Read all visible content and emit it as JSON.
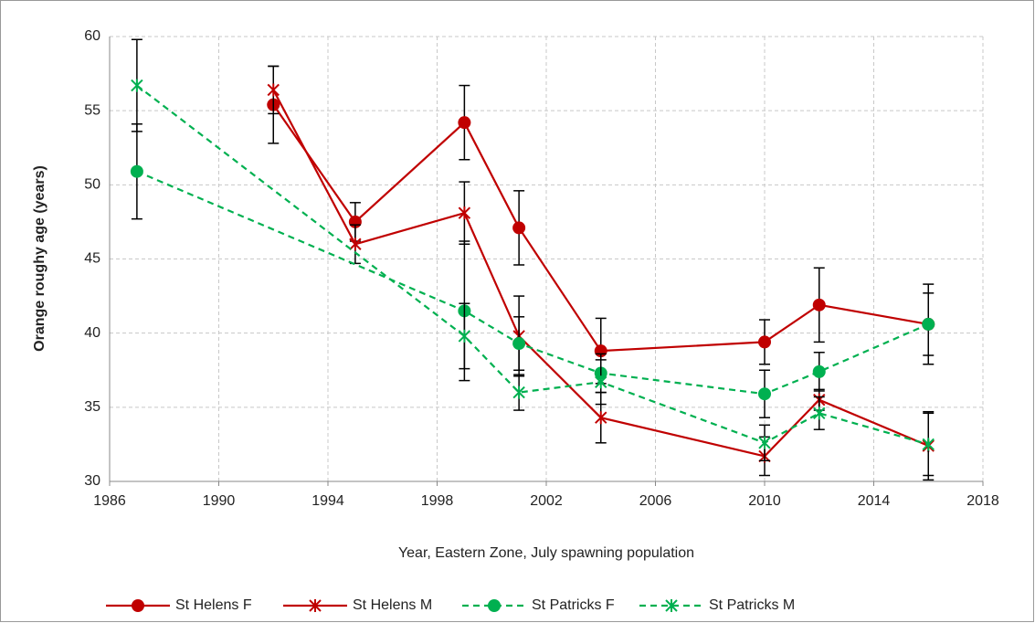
{
  "chart_data": {
    "type": "line",
    "xlabel": "Year, Eastern Zone, July spawning population",
    "ylabel": "Orange roughy age (years)",
    "xlim": [
      1986,
      2018
    ],
    "xticks": [
      1986,
      1990,
      1994,
      1998,
      2002,
      2006,
      2010,
      2014,
      2018
    ],
    "ylim": [
      30,
      60
    ],
    "yticks": [
      30,
      35,
      40,
      45,
      50,
      55,
      60
    ],
    "grid": true,
    "legend": "bottom",
    "series": [
      {
        "name": "St Helens F",
        "color": "#c00000",
        "marker": "circle",
        "dash": false,
        "x": [
          1992,
          1995,
          1999,
          2001,
          2004,
          2010,
          2012,
          2016
        ],
        "values": [
          55.4,
          47.5,
          54.2,
          47.1,
          38.8,
          39.4,
          41.9,
          40.6
        ],
        "errors": [
          2.6,
          1.3,
          2.5,
          2.5,
          2.2,
          1.5,
          2.5,
          2.7
        ]
      },
      {
        "name": "St Helens M",
        "color": "#c00000",
        "marker": "star",
        "dash": false,
        "x": [
          1992,
          1995,
          1999,
          2001,
          2004,
          2010,
          2012,
          2016
        ],
        "values": [
          56.4,
          46.0,
          48.1,
          39.8,
          34.3,
          31.7,
          35.5,
          32.4
        ],
        "errors": [
          1.6,
          1.3,
          2.1,
          2.7,
          1.7,
          1.3,
          0.7,
          2.3
        ]
      },
      {
        "name": "St Patricks F",
        "color": "#00b050",
        "marker": "circle",
        "dash": true,
        "x": [
          1987,
          1999,
          2001,
          2004,
          2010,
          2012,
          2016
        ],
        "values": [
          50.9,
          41.5,
          39.3,
          37.3,
          35.9,
          37.4,
          40.6
        ],
        "errors": [
          3.2,
          4.7,
          1.8,
          1.3,
          1.6,
          1.3,
          2.1
        ]
      },
      {
        "name": "St Patricks M",
        "color": "#00b050",
        "marker": "star",
        "dash": true,
        "x": [
          1987,
          1999,
          2001,
          2004,
          2010,
          2012,
          2016
        ],
        "values": [
          56.7,
          39.8,
          36.0,
          36.7,
          32.6,
          34.6,
          32.5
        ],
        "errors": [
          3.1,
          2.2,
          1.2,
          1.5,
          1.2,
          1.1,
          2.1
        ]
      }
    ]
  }
}
